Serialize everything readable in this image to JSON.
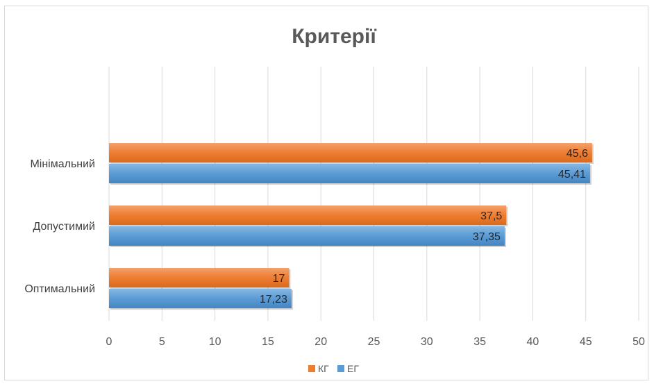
{
  "chart_data": {
    "type": "bar",
    "orientation": "horizontal",
    "title": "Критерії",
    "categories": [
      "Мінімальний",
      "Допустимий",
      "Оптимальний"
    ],
    "series": [
      {
        "name": "КГ",
        "color": "#ED7D31",
        "values": [
          45.6,
          37.5,
          17
        ],
        "labels": [
          "45,6",
          "37,5",
          "17"
        ]
      },
      {
        "name": "ЕГ",
        "color": "#5B9BD5",
        "values": [
          45.41,
          37.35,
          17.23
        ],
        "labels": [
          "45,41",
          "37,35",
          "17,23"
        ]
      }
    ],
    "xlim": [
      0,
      50
    ],
    "xticks": [
      "0",
      "5",
      "10",
      "15",
      "20",
      "25",
      "30",
      "35",
      "40",
      "45",
      "50"
    ],
    "grid": true,
    "legend_position": "bottom"
  }
}
